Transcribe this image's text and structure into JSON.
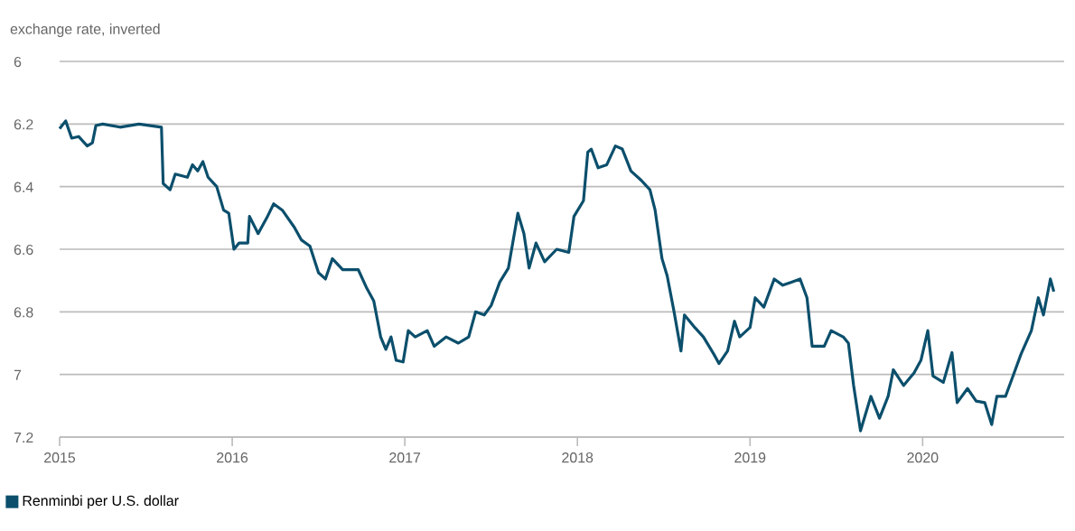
{
  "chart_data": {
    "type": "line",
    "ylabel": "exchange rate, inverted",
    "xlim": [
      2015,
      2020.82
    ],
    "xticks": [
      2015,
      2016,
      2017,
      2018,
      2019,
      2020
    ],
    "ylim": [
      7.2,
      6
    ],
    "yticks": [
      6,
      6.2,
      6.4,
      6.6,
      6.8,
      7,
      7.2
    ],
    "grid": "y",
    "legend": "bottom left",
    "marker": "none",
    "line_style": "solid",
    "series": [
      {
        "name": "Renminbi per U.S. dollar",
        "color": "#0b4f6c",
        "x": [
          2015.0,
          2015.035,
          2015.07,
          2015.11,
          2015.16,
          2015.19,
          2015.21,
          2015.25,
          2015.35,
          2015.46,
          2015.59,
          2015.6,
          2015.64,
          2015.67,
          2015.74,
          2015.77,
          2015.8,
          2015.83,
          2015.86,
          2015.91,
          2015.95,
          2015.98,
          2016.01,
          2016.04,
          2016.09,
          2016.1,
          2016.15,
          2016.2,
          2016.24,
          2016.29,
          2016.36,
          2016.4,
          2016.45,
          2016.5,
          2016.54,
          2016.58,
          2016.64,
          2016.73,
          2016.78,
          2016.82,
          2016.86,
          2016.89,
          2016.92,
          2016.95,
          2016.99,
          2017.02,
          2017.06,
          2017.13,
          2017.17,
          2017.24,
          2017.31,
          2017.37,
          2017.41,
          2017.46,
          2017.5,
          2017.55,
          2017.6,
          2017.655,
          2017.69,
          2017.72,
          2017.76,
          2017.81,
          2017.88,
          2017.95,
          2017.98,
          2018.035,
          2018.06,
          2018.08,
          2018.12,
          2018.17,
          2018.22,
          2018.26,
          2018.31,
          2018.37,
          2018.42,
          2018.45,
          2018.49,
          2018.52,
          2018.56,
          2018.6,
          2018.62,
          2018.68,
          2018.73,
          2018.79,
          2018.82,
          2018.87,
          2018.91,
          2018.94,
          2019.0,
          2019.03,
          2019.08,
          2019.14,
          2019.19,
          2019.24,
          2019.29,
          2019.33,
          2019.36,
          2019.43,
          2019.47,
          2019.54,
          2019.57,
          2019.6,
          2019.64,
          2019.7,
          2019.75,
          2019.8,
          2019.83,
          2019.89,
          2019.95,
          2019.99,
          2020.03,
          2020.06,
          2020.12,
          2020.17,
          2020.2,
          2020.26,
          2020.31,
          2020.36,
          2020.4,
          2020.43,
          2020.48,
          2020.53,
          2020.57,
          2020.63,
          2020.67,
          2020.7,
          2020.74,
          2020.76
        ],
        "values": [
          6.215,
          6.19,
          6.245,
          6.24,
          6.27,
          6.26,
          6.205,
          6.2,
          6.21,
          6.2,
          6.21,
          6.39,
          6.41,
          6.36,
          6.37,
          6.33,
          6.35,
          6.32,
          6.37,
          6.4,
          6.475,
          6.485,
          6.6,
          6.58,
          6.58,
          6.495,
          6.55,
          6.5,
          6.455,
          6.475,
          6.53,
          6.57,
          6.59,
          6.675,
          6.695,
          6.63,
          6.665,
          6.665,
          6.725,
          6.765,
          6.88,
          6.92,
          6.88,
          6.955,
          6.96,
          6.86,
          6.88,
          6.86,
          6.91,
          6.88,
          6.9,
          6.88,
          6.8,
          6.81,
          6.78,
          6.705,
          6.66,
          6.485,
          6.55,
          6.66,
          6.58,
          6.64,
          6.6,
          6.61,
          6.495,
          6.445,
          6.29,
          6.28,
          6.34,
          6.33,
          6.27,
          6.28,
          6.35,
          6.38,
          6.41,
          6.475,
          6.63,
          6.685,
          6.8,
          6.925,
          6.81,
          6.85,
          6.88,
          6.935,
          6.965,
          6.925,
          6.83,
          6.88,
          6.85,
          6.755,
          6.785,
          6.695,
          6.715,
          6.705,
          6.695,
          6.755,
          6.91,
          6.91,
          6.86,
          6.88,
          6.9,
          7.035,
          7.18,
          7.07,
          7.14,
          7.07,
          6.985,
          7.035,
          6.995,
          6.955,
          6.86,
          7.005,
          7.025,
          6.93,
          7.09,
          7.045,
          7.085,
          7.09,
          7.16,
          7.07,
          7.07,
          6.995,
          6.935,
          6.86,
          6.755,
          6.81,
          6.695,
          6.735
        ]
      }
    ]
  }
}
